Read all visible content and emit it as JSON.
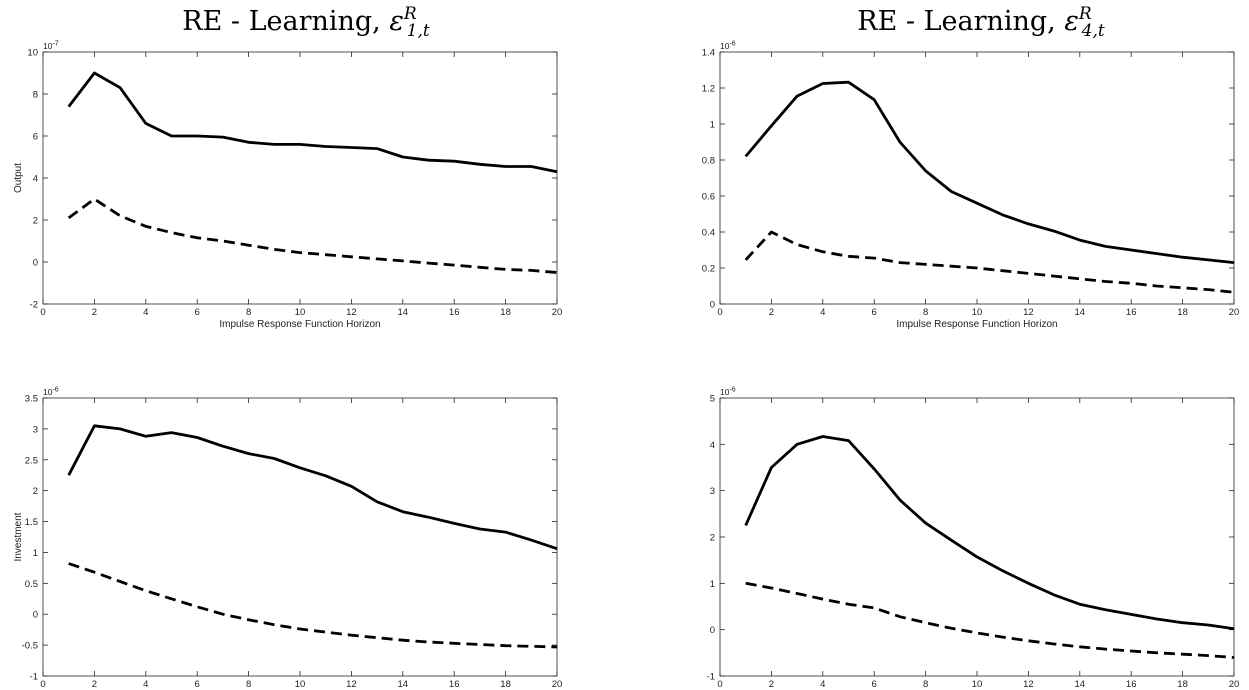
{
  "column_titles": [
    {
      "base": "RE - Learning, ",
      "symbol": "ε",
      "sup": "R",
      "sub": "1,t"
    },
    {
      "base": "RE - Learning, ",
      "symbol": "ε",
      "sup": "R",
      "sub": "4,t"
    }
  ],
  "chart_data": [
    {
      "type": "line",
      "title": "",
      "xlabel": "Impulse Response Function Horizon",
      "ylabel": "Output",
      "multiplier_label": "10",
      "multiplier_exp": "-7",
      "xlim": [
        0,
        20
      ],
      "ylim": [
        -2,
        10
      ],
      "xticks": [
        0,
        2,
        4,
        6,
        8,
        10,
        12,
        14,
        16,
        18,
        20
      ],
      "yticks": [
        -2,
        0,
        2,
        4,
        6,
        8,
        10
      ],
      "ytick_labels": [
        "-2",
        "0",
        "2",
        "4",
        "6",
        "8",
        "10"
      ],
      "grid": false,
      "legend": "none",
      "x": [
        1,
        2,
        3,
        4,
        5,
        6,
        7,
        8,
        9,
        10,
        11,
        12,
        13,
        14,
        15,
        16,
        17,
        18,
        19,
        20
      ],
      "series": [
        {
          "style": "solid",
          "values": [
            7.4,
            9.0,
            8.3,
            6.6,
            6.0,
            6.0,
            5.95,
            5.7,
            5.6,
            5.6,
            5.5,
            5.45,
            5.4,
            5.0,
            4.85,
            4.8,
            4.65,
            4.55,
            4.55,
            4.3
          ]
        },
        {
          "style": "dashed",
          "values": [
            2.1,
            3.0,
            2.2,
            1.7,
            1.4,
            1.15,
            1.0,
            0.8,
            0.6,
            0.45,
            0.35,
            0.25,
            0.15,
            0.05,
            -0.05,
            -0.15,
            -0.25,
            -0.35,
            -0.4,
            -0.5
          ]
        }
      ]
    },
    {
      "type": "line",
      "title": "",
      "xlabel": "Impulse Response Function Horizon",
      "ylabel": "",
      "multiplier_label": "10",
      "multiplier_exp": "-6",
      "xlim": [
        0,
        20
      ],
      "ylim": [
        0,
        1.4
      ],
      "xticks": [
        0,
        2,
        4,
        6,
        8,
        10,
        12,
        14,
        16,
        18,
        20
      ],
      "yticks": [
        0,
        0.2,
        0.4,
        0.6,
        0.8,
        1.0,
        1.2,
        1.4
      ],
      "ytick_labels": [
        "0",
        "0.2",
        "0.4",
        "0.6",
        "0.8",
        "1",
        "1.2",
        "1.4"
      ],
      "grid": false,
      "legend": "none",
      "x": [
        1,
        2,
        3,
        4,
        5,
        6,
        7,
        8,
        9,
        10,
        11,
        12,
        13,
        14,
        15,
        16,
        17,
        18,
        19,
        20
      ],
      "series": [
        {
          "style": "solid",
          "values": [
            0.82,
            0.99,
            1.155,
            1.225,
            1.232,
            1.135,
            0.9,
            0.74,
            0.625,
            0.56,
            0.495,
            0.445,
            0.405,
            0.355,
            0.32,
            0.3,
            0.28,
            0.26,
            0.245,
            0.23
          ]
        },
        {
          "style": "dashed",
          "values": [
            0.245,
            0.4,
            0.33,
            0.29,
            0.265,
            0.255,
            0.23,
            0.22,
            0.21,
            0.2,
            0.185,
            0.17,
            0.155,
            0.14,
            0.125,
            0.115,
            0.1,
            0.09,
            0.08,
            0.065
          ]
        }
      ]
    },
    {
      "type": "line",
      "title": "",
      "xlabel": "Impulse Response Function Horizon",
      "ylabel": "Investment",
      "multiplier_label": "10",
      "multiplier_exp": "-6",
      "xlim": [
        0,
        20
      ],
      "ylim": [
        -1,
        3.5
      ],
      "xticks": [
        0,
        2,
        4,
        6,
        8,
        10,
        12,
        14,
        16,
        18,
        20
      ],
      "yticks": [
        -1,
        -0.5,
        0,
        0.5,
        1,
        1.5,
        2,
        2.5,
        3,
        3.5
      ],
      "ytick_labels": [
        "-1",
        "-0.5",
        "0",
        "0.5",
        "1",
        "1.5",
        "2",
        "2.5",
        "3",
        "3.5"
      ],
      "grid": false,
      "legend": "none",
      "x": [
        1,
        2,
        3,
        4,
        5,
        6,
        7,
        8,
        9,
        10,
        11,
        12,
        13,
        14,
        15,
        16,
        17,
        18,
        19,
        20
      ],
      "series": [
        {
          "style": "solid",
          "values": [
            2.25,
            3.05,
            3.0,
            2.88,
            2.94,
            2.86,
            2.72,
            2.6,
            2.52,
            2.37,
            2.24,
            2.07,
            1.82,
            1.66,
            1.57,
            1.47,
            1.38,
            1.33,
            1.2,
            1.06
          ]
        },
        {
          "style": "dashed",
          "values": [
            0.82,
            0.68,
            0.53,
            0.38,
            0.25,
            0.12,
            0.0,
            -0.09,
            -0.17,
            -0.24,
            -0.29,
            -0.34,
            -0.38,
            -0.42,
            -0.45,
            -0.47,
            -0.49,
            -0.51,
            -0.52,
            -0.53
          ]
        }
      ]
    },
    {
      "type": "line",
      "title": "",
      "xlabel": "Impulse Response Function Horizon",
      "ylabel": "",
      "multiplier_label": "10",
      "multiplier_exp": "-6",
      "xlim": [
        0,
        20
      ],
      "ylim": [
        -1,
        5
      ],
      "xticks": [
        0,
        2,
        4,
        6,
        8,
        10,
        12,
        14,
        16,
        18,
        20
      ],
      "yticks": [
        -1,
        0,
        1,
        2,
        3,
        4,
        5
      ],
      "ytick_labels": [
        "-1",
        "0",
        "1",
        "2",
        "3",
        "4",
        "5"
      ],
      "grid": false,
      "legend": "none",
      "x": [
        1,
        2,
        3,
        4,
        5,
        6,
        7,
        8,
        9,
        10,
        11,
        12,
        13,
        14,
        15,
        16,
        17,
        18,
        19,
        20
      ],
      "series": [
        {
          "style": "solid",
          "values": [
            2.25,
            3.5,
            4.0,
            4.17,
            4.08,
            3.47,
            2.8,
            2.3,
            1.93,
            1.57,
            1.27,
            1.0,
            0.75,
            0.55,
            0.43,
            0.33,
            0.23,
            0.15,
            0.1,
            0.02
          ]
        },
        {
          "style": "dashed",
          "values": [
            1.0,
            0.9,
            0.78,
            0.66,
            0.55,
            0.47,
            0.28,
            0.15,
            0.03,
            -0.07,
            -0.16,
            -0.24,
            -0.31,
            -0.37,
            -0.42,
            -0.46,
            -0.5,
            -0.53,
            -0.56,
            -0.6
          ]
        }
      ]
    }
  ]
}
